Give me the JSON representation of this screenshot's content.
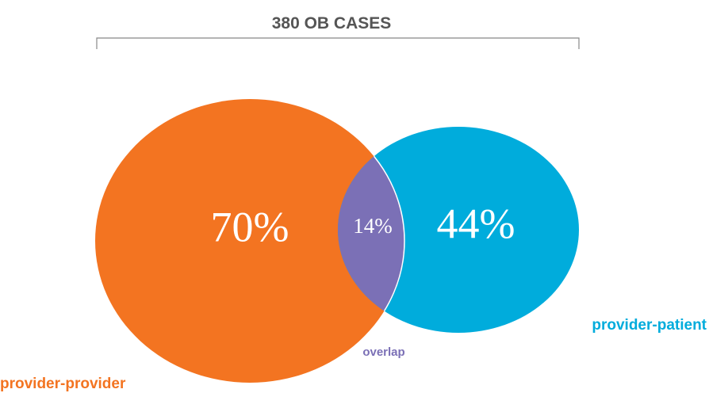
{
  "title": "380 OB CASES",
  "sets": [
    {
      "name": "provider-provider",
      "percent": "70%",
      "color": "#f37421"
    },
    {
      "name": "provider-patient",
      "percent": "44%",
      "color": "#00acdc"
    }
  ],
  "overlap": {
    "name": "overlap",
    "percent": "14%",
    "color": "#7b70b6"
  }
}
